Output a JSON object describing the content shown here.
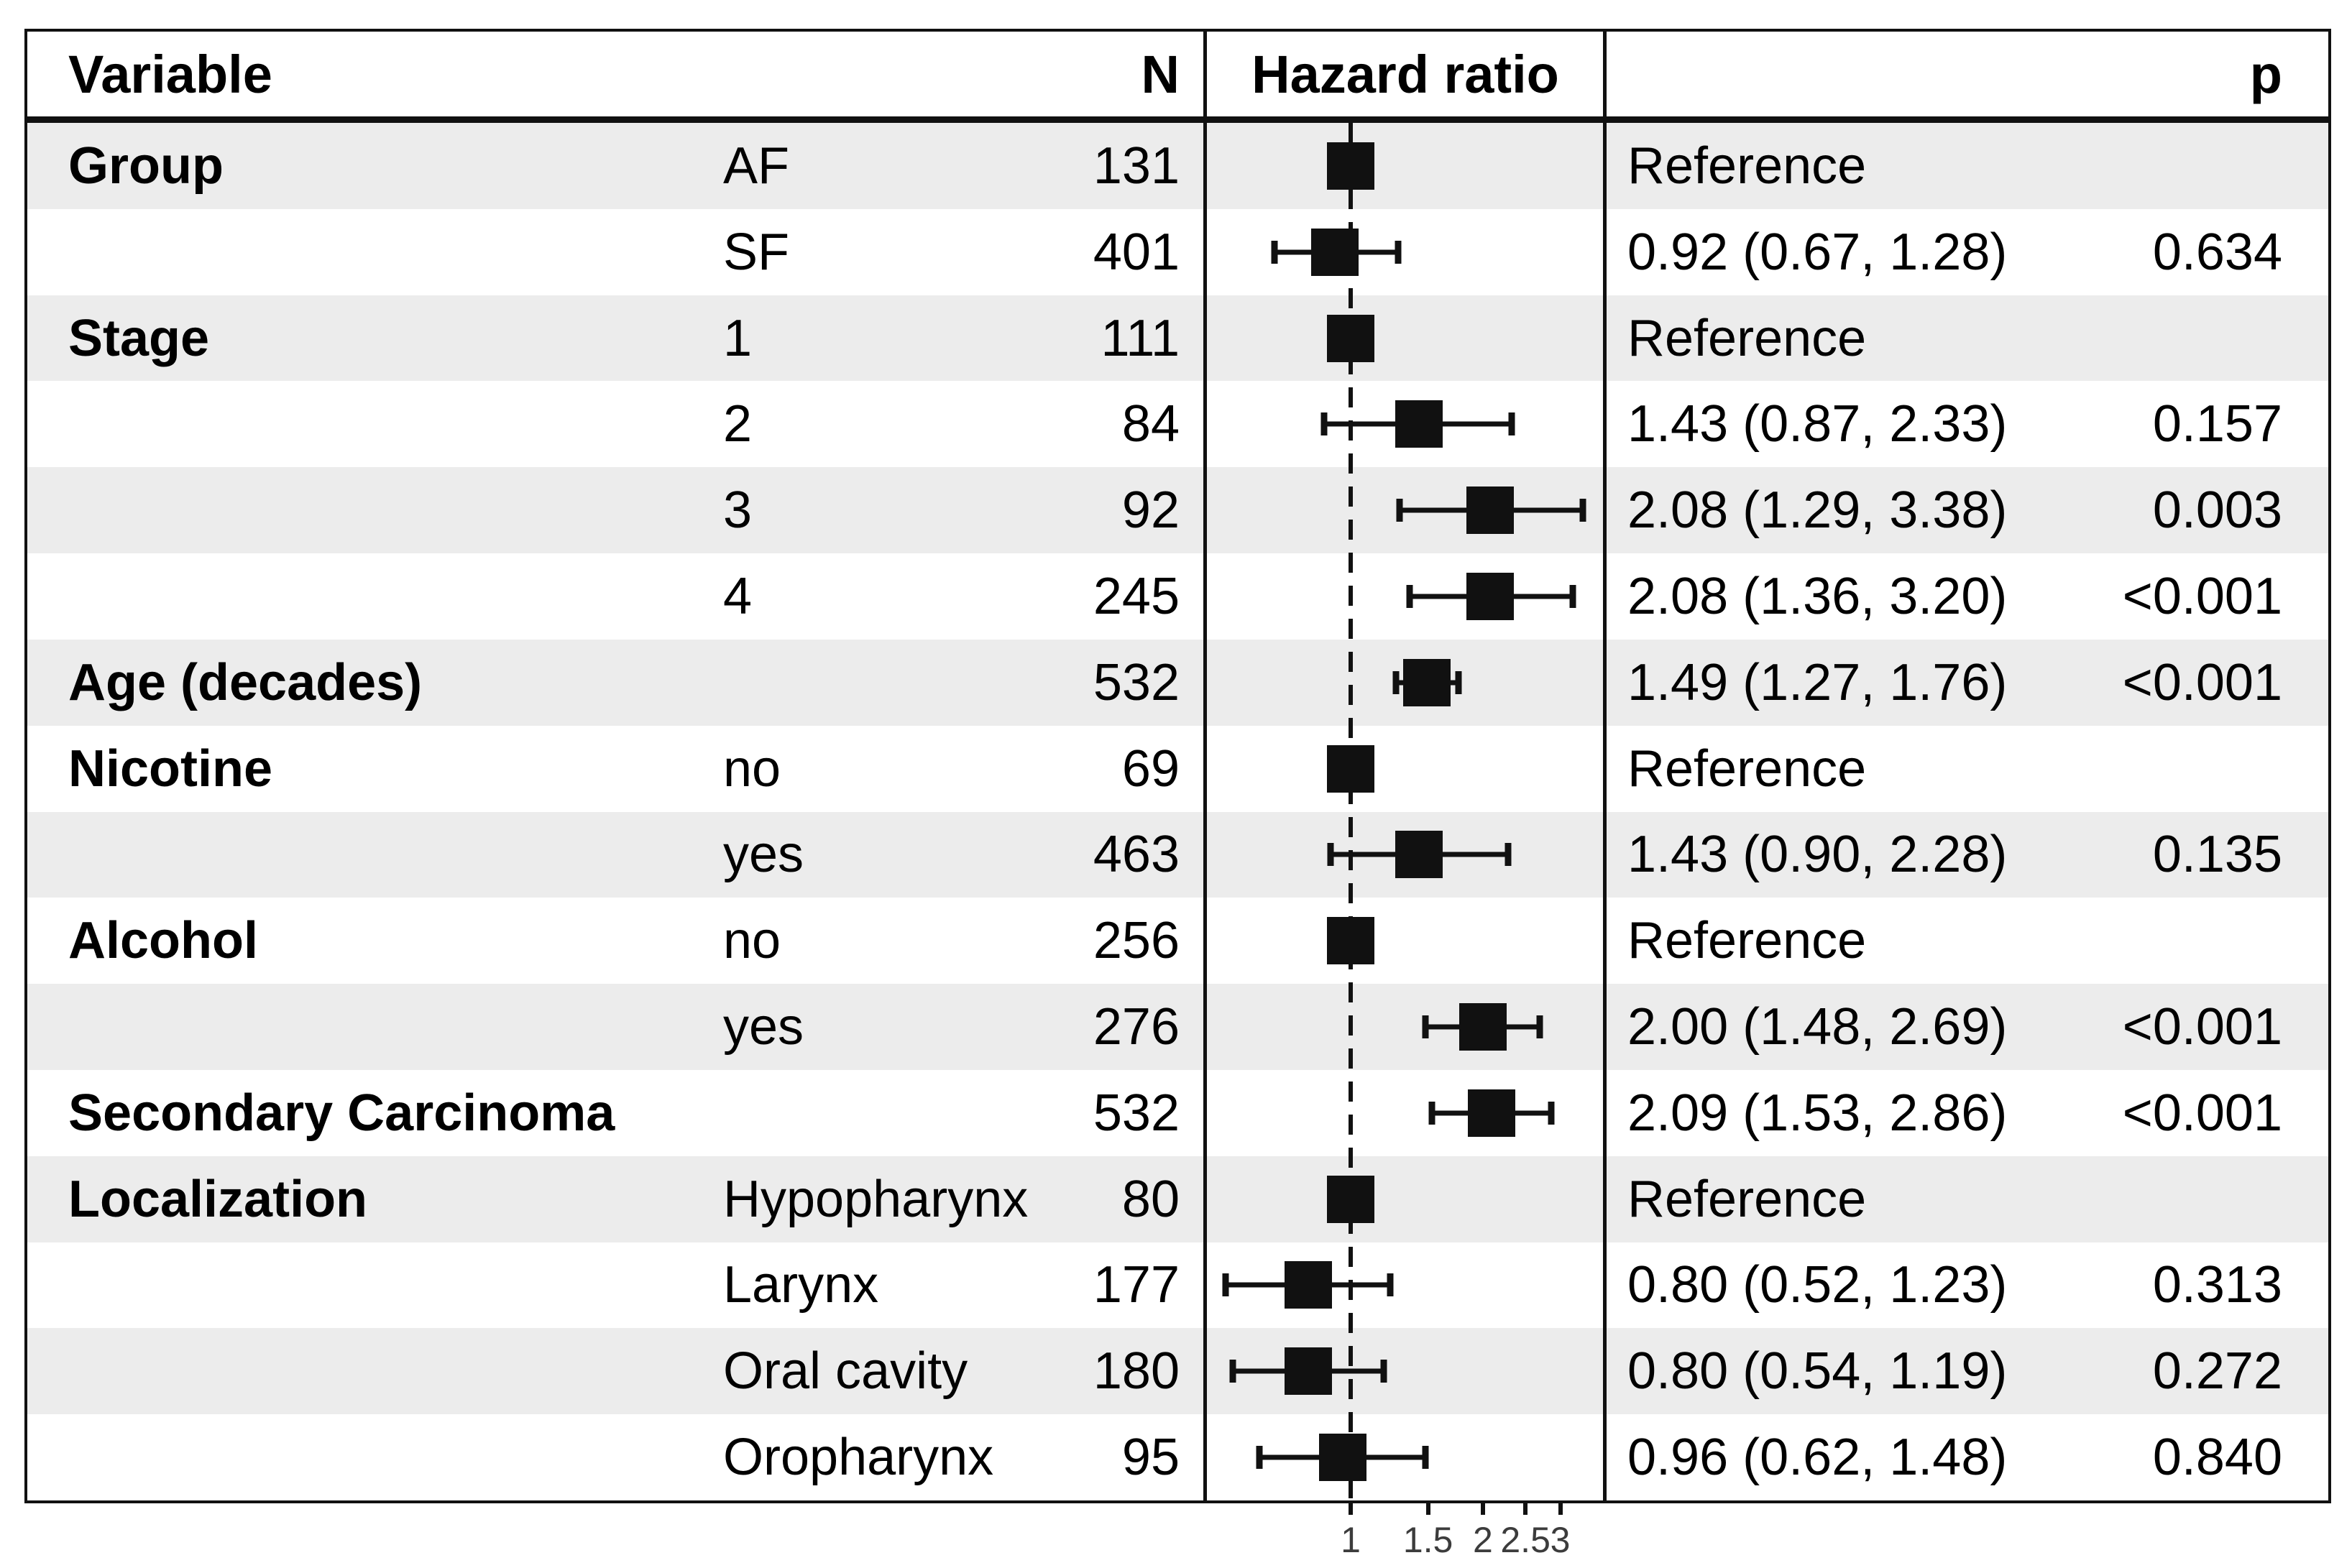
{
  "figure": {
    "columns": {
      "variable": "Variable",
      "n": "N",
      "hazard_ratio": "Hazard ratio",
      "p": "p"
    },
    "rows": [
      {
        "variable": "Group",
        "level": "AF",
        "n": "131",
        "hr_text": "Reference",
        "p": "",
        "est": 1.0,
        "ref": true
      },
      {
        "variable": "",
        "level": "SF",
        "n": "401",
        "hr_text": "0.92 (0.67, 1.28)",
        "p": "0.634",
        "est": 0.92,
        "lo": 0.67,
        "hi": 1.28
      },
      {
        "variable": "Stage",
        "level": "1",
        "n": "111",
        "hr_text": "Reference",
        "p": "",
        "est": 1.0,
        "ref": true
      },
      {
        "variable": "",
        "level": "2",
        "n": "84",
        "hr_text": "1.43 (0.87, 2.33)",
        "p": "0.157",
        "est": 1.43,
        "lo": 0.87,
        "hi": 2.33
      },
      {
        "variable": "",
        "level": "3",
        "n": "92",
        "hr_text": "2.08 (1.29, 3.38)",
        "p": "0.003",
        "est": 2.08,
        "lo": 1.29,
        "hi": 3.38
      },
      {
        "variable": "",
        "level": "4",
        "n": "245",
        "hr_text": "2.08 (1.36, 3.20)",
        "p": "<0.001",
        "est": 2.08,
        "lo": 1.36,
        "hi": 3.2
      },
      {
        "variable": "Age (decades)",
        "level": "",
        "n": "532",
        "hr_text": "1.49 (1.27, 1.76)",
        "p": "<0.001",
        "est": 1.49,
        "lo": 1.27,
        "hi": 1.76
      },
      {
        "variable": "Nicotine",
        "level": "no",
        "n": "69",
        "hr_text": "Reference",
        "p": "",
        "est": 1.0,
        "ref": true
      },
      {
        "variable": "",
        "level": "yes",
        "n": "463",
        "hr_text": "1.43 (0.90, 2.28)",
        "p": "0.135",
        "est": 1.43,
        "lo": 0.9,
        "hi": 2.28
      },
      {
        "variable": "Alcohol",
        "level": "no",
        "n": "256",
        "hr_text": "Reference",
        "p": "",
        "est": 1.0,
        "ref": true
      },
      {
        "variable": "",
        "level": "yes",
        "n": "276",
        "hr_text": "2.00 (1.48, 2.69)",
        "p": "<0.001",
        "est": 2.0,
        "lo": 1.48,
        "hi": 2.69
      },
      {
        "variable": "Secondary Carcinoma",
        "level": "",
        "n": "532",
        "hr_text": "2.09 (1.53, 2.86)",
        "p": "<0.001",
        "est": 2.09,
        "lo": 1.53,
        "hi": 2.86
      },
      {
        "variable": "Localization",
        "level": "Hypopharynx",
        "n": "80",
        "hr_text": "Reference",
        "p": "",
        "est": 1.0,
        "ref": true
      },
      {
        "variable": "",
        "level": "Larynx",
        "n": "177",
        "hr_text": "0.80 (0.52, 1.23)",
        "p": "0.313",
        "est": 0.8,
        "lo": 0.52,
        "hi": 1.23
      },
      {
        "variable": "",
        "level": "Oral cavity",
        "n": "180",
        "hr_text": "0.80 (0.54, 1.19)",
        "p": "0.272",
        "est": 0.8,
        "lo": 0.54,
        "hi": 1.19
      },
      {
        "variable": "",
        "level": "Oropharynx",
        "n": "95",
        "hr_text": "0.96 (0.62, 1.48)",
        "p": "0.840",
        "est": 0.96,
        "lo": 0.62,
        "hi": 1.48
      }
    ],
    "axis": {
      "scale": "log",
      "ticks": [
        {
          "v": 1,
          "label": "1"
        },
        {
          "v": 1.5,
          "label": "1.5"
        },
        {
          "v": 2,
          "label": "2"
        },
        {
          "v": 2.5,
          "label": "2.5"
        },
        {
          "v": 3,
          "label": "3"
        }
      ]
    }
  },
  "colors": {
    "stripe": "#ececec",
    "ink": "#111111",
    "axis_label": "#3c3c3c"
  },
  "chart_data": {
    "type": "scatter",
    "subtype": "forest-plot",
    "title": "",
    "xlabel": "Hazard ratio",
    "x_scale": "log",
    "x_ticks": [
      1,
      1.5,
      2,
      2.5,
      3
    ],
    "x_range": [
      0.5,
      3.5
    ],
    "reference_line": 1.0,
    "points": [
      {
        "group": "Group",
        "label": "AF",
        "n": 131,
        "hr": 1.0,
        "reference": true
      },
      {
        "group": "Group",
        "label": "SF",
        "n": 401,
        "hr": 0.92,
        "ci": [
          0.67,
          1.28
        ],
        "p": "0.634"
      },
      {
        "group": "Stage",
        "label": "1",
        "n": 111,
        "hr": 1.0,
        "reference": true
      },
      {
        "group": "Stage",
        "label": "2",
        "n": 84,
        "hr": 1.43,
        "ci": [
          0.87,
          2.33
        ],
        "p": "0.157"
      },
      {
        "group": "Stage",
        "label": "3",
        "n": 92,
        "hr": 2.08,
        "ci": [
          1.29,
          3.38
        ],
        "p": "0.003"
      },
      {
        "group": "Stage",
        "label": "4",
        "n": 245,
        "hr": 2.08,
        "ci": [
          1.36,
          3.2
        ],
        "p": "<0.001"
      },
      {
        "group": "Age (decades)",
        "label": "",
        "n": 532,
        "hr": 1.49,
        "ci": [
          1.27,
          1.76
        ],
        "p": "<0.001"
      },
      {
        "group": "Nicotine",
        "label": "no",
        "n": 69,
        "hr": 1.0,
        "reference": true
      },
      {
        "group": "Nicotine",
        "label": "yes",
        "n": 463,
        "hr": 1.43,
        "ci": [
          0.9,
          2.28
        ],
        "p": "0.135"
      },
      {
        "group": "Alcohol",
        "label": "no",
        "n": 256,
        "hr": 1.0,
        "reference": true
      },
      {
        "group": "Alcohol",
        "label": "yes",
        "n": 276,
        "hr": 2.0,
        "ci": [
          1.48,
          2.69
        ],
        "p": "<0.001"
      },
      {
        "group": "Secondary Carcinoma",
        "label": "",
        "n": 532,
        "hr": 2.09,
        "ci": [
          1.53,
          2.86
        ],
        "p": "<0.001"
      },
      {
        "group": "Localization",
        "label": "Hypopharynx",
        "n": 80,
        "hr": 1.0,
        "reference": true
      },
      {
        "group": "Localization",
        "label": "Larynx",
        "n": 177,
        "hr": 0.8,
        "ci": [
          0.52,
          1.23
        ],
        "p": "0.313"
      },
      {
        "group": "Localization",
        "label": "Oral cavity",
        "n": 180,
        "hr": 0.8,
        "ci": [
          0.54,
          1.19
        ],
        "p": "0.272"
      },
      {
        "group": "Localization",
        "label": "Oropharynx",
        "n": 95,
        "hr": 0.96,
        "ci": [
          0.62,
          1.48
        ],
        "p": "0.840"
      }
    ]
  }
}
